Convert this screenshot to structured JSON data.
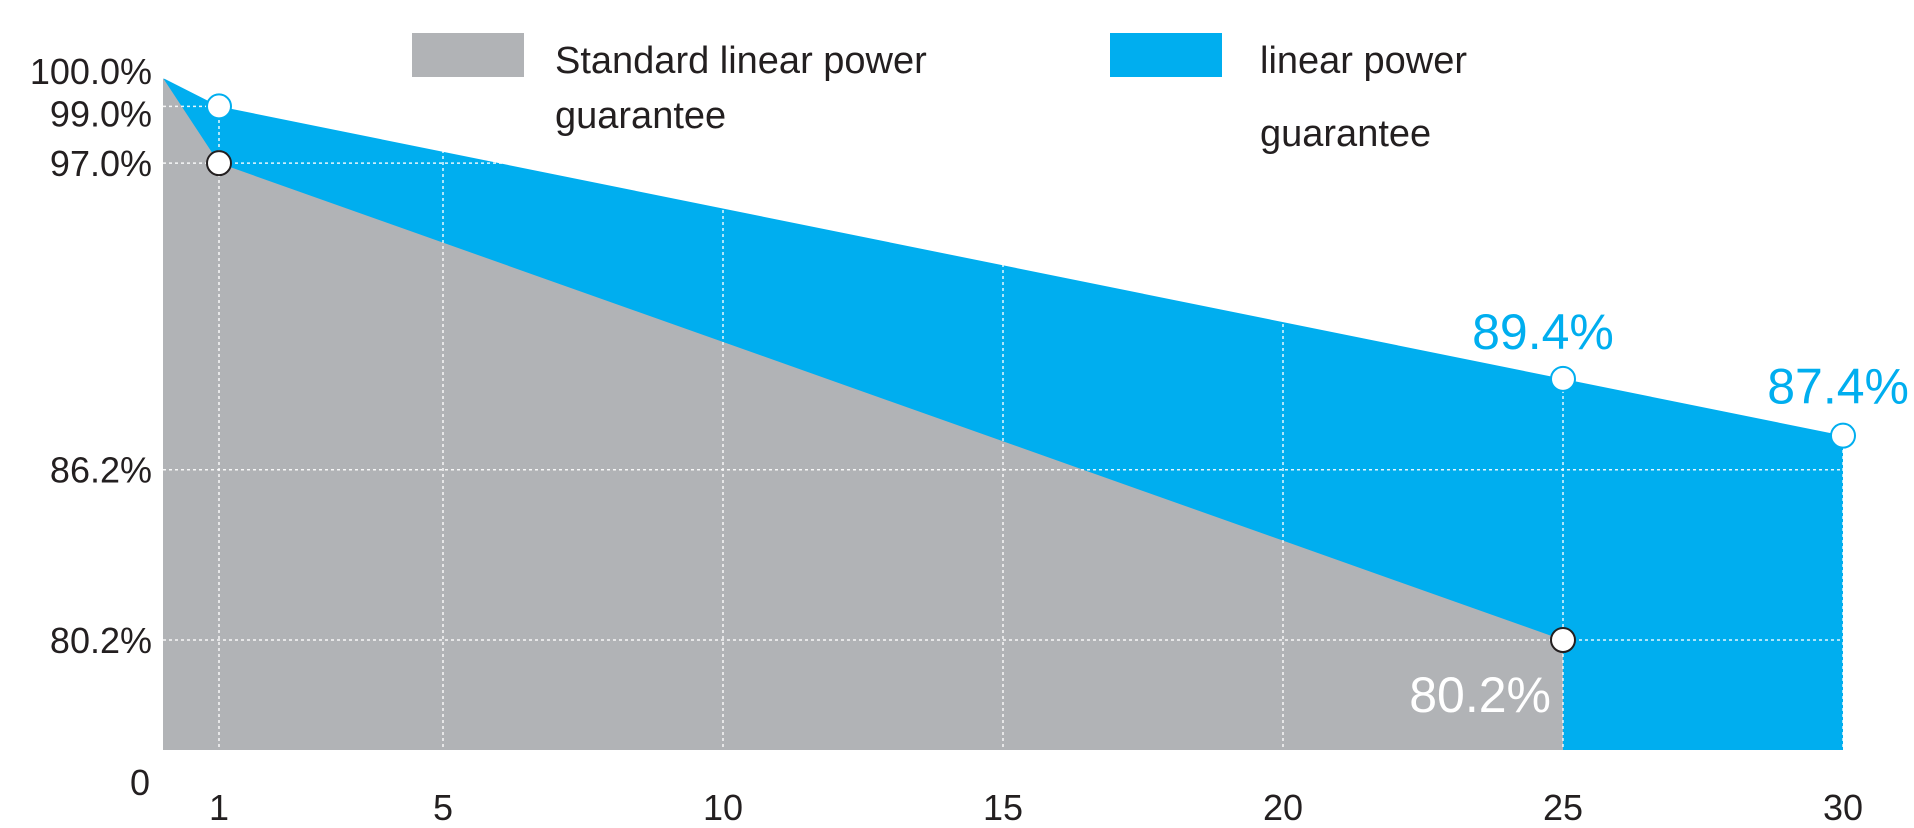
{
  "chart_data": {
    "type": "area",
    "x_ticks": [
      1,
      5,
      10,
      15,
      20,
      25,
      30
    ],
    "y_tick_labels": [
      {
        "value": 100.0,
        "label": "100.0%"
      },
      {
        "value": 99.0,
        "label": "99.0%"
      },
      {
        "value": 97.0,
        "label": "97.0%"
      },
      {
        "value": 86.2,
        "label": "86.2%"
      },
      {
        "value": 80.2,
        "label": "80.2%"
      }
    ],
    "y_origin_label": "0",
    "xlim": [
      0,
      30
    ],
    "series": [
      {
        "name": "Standard linear power guarantee",
        "color": "#b1b3b6",
        "points": [
          [
            0,
            100.0
          ],
          [
            1,
            97.0
          ],
          [
            25,
            80.2
          ]
        ],
        "markers": [
          [
            1,
            97.0
          ],
          [
            25,
            80.2
          ]
        ]
      },
      {
        "name": "linear power guarantee",
        "color": "#00aeef",
        "points": [
          [
            0,
            100.0
          ],
          [
            1,
            99.0
          ],
          [
            25,
            89.4
          ],
          [
            30,
            87.4
          ]
        ],
        "markers": [
          [
            1,
            99.0
          ],
          [
            25,
            89.4
          ],
          [
            30,
            87.4
          ]
        ]
      }
    ],
    "annotations": [
      {
        "x": 25,
        "y": 89.4,
        "text": "89.4%",
        "color": "#00aeef"
      },
      {
        "x": 30,
        "y": 87.4,
        "text": "87.4%",
        "color": "#00aeef"
      },
      {
        "x": 25,
        "y": 80.2,
        "text": "80.2%",
        "color": "#ffffff"
      }
    ],
    "legend": {
      "placement": "top",
      "entries": [
        {
          "lines": [
            "Standard linear power",
            "guarantee"
          ],
          "color": "#b1b3b6"
        },
        {
          "lines": [
            "linear power",
            "guarantee"
          ],
          "color": "#00aeef"
        }
      ]
    },
    "grid": true
  }
}
